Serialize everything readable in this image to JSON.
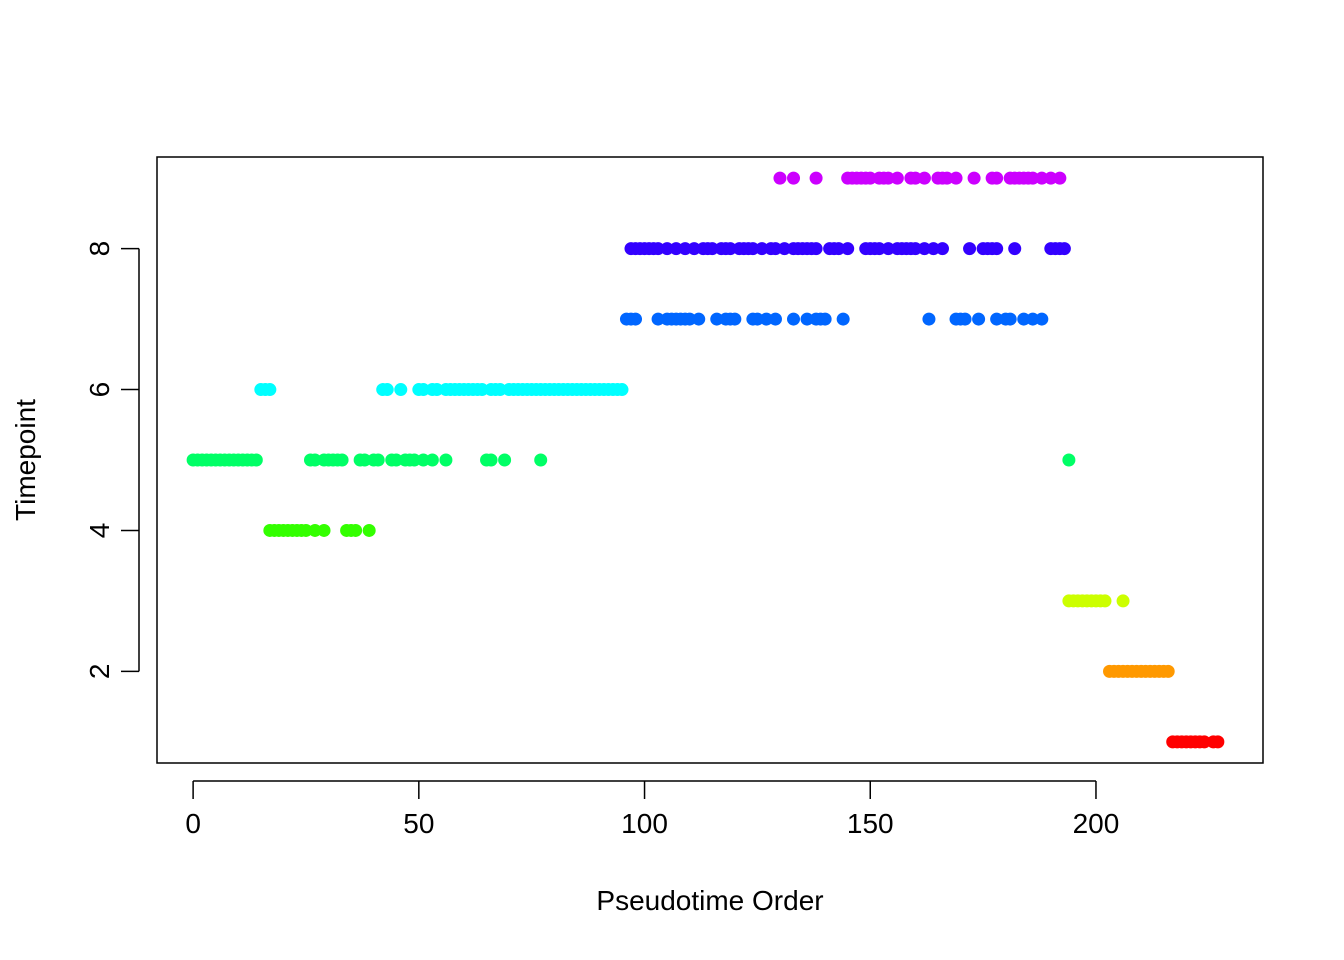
{
  "chart_data": {
    "type": "scatter",
    "title": "",
    "xlabel": "Pseudotime Order",
    "ylabel": "Timepoint",
    "xlim": [
      -8,
      237
    ],
    "ylim": [
      0.7,
      9.3
    ],
    "x_ticks": [
      0,
      50,
      100,
      150,
      200
    ],
    "y_ticks": [
      2,
      4,
      6,
      8
    ],
    "grid": false,
    "legend": "none",
    "timepoint_colors": {
      "1": "#FF0000",
      "2": "#FF9900",
      "3": "#CCFF00",
      "4": "#33FF00",
      "5": "#00FF66",
      "6": "#00FFFF",
      "7": "#0066FF",
      "8": "#3300FF",
      "9": "#CC00FF"
    },
    "series": [
      {
        "y": 5,
        "x": [
          0,
          1,
          2,
          3,
          4,
          5,
          6,
          7,
          8,
          9,
          10,
          11,
          12,
          13,
          14,
          26,
          27,
          29,
          30,
          31,
          32,
          33,
          37,
          38,
          40,
          41,
          44,
          45,
          47,
          48,
          49,
          51,
          53,
          56,
          65,
          66,
          69,
          77,
          194
        ]
      },
      {
        "y": 4,
        "x": [
          17,
          18,
          19,
          20,
          21,
          22,
          23,
          24,
          25,
          27,
          29,
          34,
          35,
          36,
          39
        ]
      },
      {
        "y": 6,
        "x": [
          15,
          16,
          17,
          42,
          43,
          46,
          50,
          51,
          53,
          54,
          56,
          57,
          58,
          59,
          60,
          61,
          62,
          63,
          64,
          66,
          67,
          68,
          70,
          71,
          72,
          73,
          74,
          75,
          76,
          77,
          78,
          79,
          80,
          81,
          82,
          83,
          84,
          85,
          86,
          87,
          88,
          89,
          90,
          91,
          92,
          93,
          94,
          95
        ]
      },
      {
        "y": 7,
        "x": [
          96,
          97,
          98,
          103,
          105,
          106,
          107,
          108,
          109,
          110,
          112,
          116,
          118,
          119,
          120,
          124,
          125,
          127,
          129,
          133,
          136,
          138,
          139,
          140,
          144,
          163,
          169,
          170,
          171,
          174,
          178,
          180,
          181,
          184,
          186,
          188
        ]
      },
      {
        "y": 8,
        "x": [
          97,
          98,
          99,
          100,
          101,
          102,
          103,
          105,
          107,
          109,
          111,
          113,
          114,
          115,
          117,
          118,
          119,
          121,
          122,
          123,
          124,
          126,
          128,
          129,
          131,
          133,
          134,
          135,
          136,
          137,
          138,
          141,
          142,
          143,
          145,
          149,
          150,
          151,
          152,
          154,
          156,
          157,
          158,
          159,
          160,
          162,
          164,
          166,
          172,
          175,
          176,
          177,
          178,
          182,
          190,
          191,
          192,
          193
        ]
      },
      {
        "y": 9,
        "x": [
          130,
          133,
          138,
          145,
          146,
          147,
          148,
          149,
          150,
          152,
          153,
          154,
          156,
          159,
          160,
          162,
          165,
          166,
          167,
          169,
          173,
          177,
          178,
          181,
          182,
          183,
          184,
          185,
          186,
          188,
          190,
          192
        ]
      },
      {
        "y": 3,
        "x": [
          194,
          195,
          196,
          197,
          198,
          199,
          200,
          201,
          202,
          206
        ]
      },
      {
        "y": 2,
        "x": [
          203,
          204,
          205,
          206,
          207,
          208,
          209,
          210,
          211,
          212,
          213,
          214,
          215,
          216
        ]
      },
      {
        "y": 1,
        "x": [
          217,
          218,
          219,
          220,
          221,
          222,
          223,
          224,
          226,
          227
        ]
      }
    ]
  }
}
